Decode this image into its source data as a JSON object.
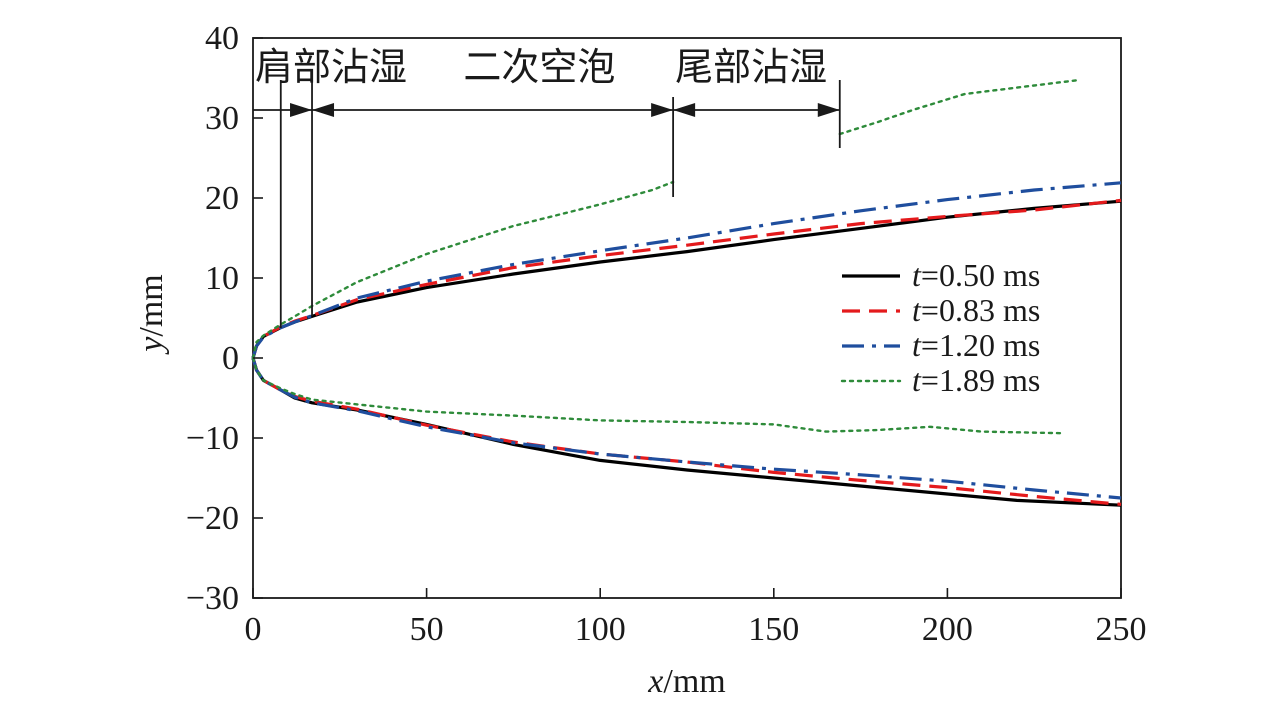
{
  "chart_data": {
    "type": "line",
    "xlabel_var": "x",
    "xlabel_unit": "/mm",
    "ylabel_var": "y",
    "ylabel_unit": "/mm",
    "xlim": [
      0,
      250
    ],
    "ylim": [
      -30,
      40
    ],
    "xticks": [
      0,
      50,
      100,
      150,
      200,
      250
    ],
    "yticks": [
      -30,
      -20,
      -10,
      0,
      10,
      20,
      30,
      40
    ],
    "tick_labels_x": [
      "0",
      "50",
      "100",
      "150",
      "200",
      "250"
    ],
    "tick_labels_y": [
      "−30",
      "−20",
      "−10",
      "0",
      "10",
      "20",
      "30",
      "40"
    ],
    "grid": false,
    "legend_position": "right",
    "regions": [
      {
        "label": "肩部沾湿",
        "x_start": 0,
        "x_end": 17,
        "label_x": 0
      },
      {
        "label": "二次空泡",
        "x_start": 17,
        "x_end": 121,
        "label_x": 60
      },
      {
        "label": "尾部沾湿",
        "x_start": 121,
        "x_end": 169,
        "label_x": 121
      }
    ],
    "series": [
      {
        "name": "t=0.50 ms",
        "name_var": "t",
        "name_rest": "=0.50 ms",
        "color": "#000000",
        "dash": "solid",
        "upper": [
          [
            0,
            0
          ],
          [
            1,
            1.5
          ],
          [
            3,
            2.7
          ],
          [
            8,
            3.8
          ],
          [
            12,
            4.5
          ],
          [
            17,
            5.2
          ],
          [
            30,
            7
          ],
          [
            50,
            8.8
          ],
          [
            75,
            10.5
          ],
          [
            100,
            12
          ],
          [
            125,
            13.3
          ],
          [
            150,
            14.8
          ],
          [
            175,
            16.2
          ],
          [
            200,
            17.6
          ],
          [
            225,
            18.7
          ],
          [
            250,
            19.6
          ]
        ],
        "lower": [
          [
            0,
            0
          ],
          [
            1,
            -1.5
          ],
          [
            3,
            -2.8
          ],
          [
            8,
            -4
          ],
          [
            12,
            -5
          ],
          [
            17,
            -5.6
          ],
          [
            30,
            -6.5
          ],
          [
            50,
            -8.3
          ],
          [
            75,
            -10.8
          ],
          [
            100,
            -12.8
          ],
          [
            125,
            -14
          ],
          [
            150,
            -15
          ],
          [
            175,
            -16
          ],
          [
            200,
            -17
          ],
          [
            220,
            -17.8
          ],
          [
            250,
            -18.4
          ]
        ]
      },
      {
        "name": "t=0.83 ms",
        "name_var": "t",
        "name_rest": "=0.83 ms",
        "color": "#e41a1c",
        "dash": "dashed",
        "upper": [
          [
            0,
            0
          ],
          [
            1,
            1.5
          ],
          [
            3,
            2.7
          ],
          [
            8,
            3.9
          ],
          [
            12,
            4.6
          ],
          [
            17,
            5.3
          ],
          [
            30,
            7.3
          ],
          [
            50,
            9.2
          ],
          [
            75,
            11.3
          ],
          [
            100,
            12.8
          ],
          [
            125,
            14.1
          ],
          [
            150,
            15.5
          ],
          [
            175,
            16.8
          ],
          [
            200,
            17.7
          ],
          [
            225,
            18.5
          ],
          [
            250,
            19.7
          ]
        ],
        "lower": [
          [
            0,
            0
          ],
          [
            1,
            -1.5
          ],
          [
            3,
            -2.8
          ],
          [
            8,
            -4
          ],
          [
            12,
            -4.8
          ],
          [
            17,
            -5.4
          ],
          [
            30,
            -6.4
          ],
          [
            50,
            -8.4
          ],
          [
            75,
            -10.5
          ],
          [
            100,
            -12
          ],
          [
            125,
            -13
          ],
          [
            150,
            -14.3
          ],
          [
            175,
            -15.3
          ],
          [
            200,
            -16.2
          ],
          [
            225,
            -17.3
          ],
          [
            250,
            -18.3
          ]
        ]
      },
      {
        "name": "t=1.20 ms",
        "name_var": "t",
        "name_rest": "=1.20 ms",
        "color": "#1f4e9e",
        "dash": "dashdot",
        "upper": [
          [
            0,
            0
          ],
          [
            1,
            1.5
          ],
          [
            3,
            2.6
          ],
          [
            8,
            3.8
          ],
          [
            12,
            4.5
          ],
          [
            17,
            5.3
          ],
          [
            30,
            7.5
          ],
          [
            50,
            9.6
          ],
          [
            75,
            11.7
          ],
          [
            100,
            13.4
          ],
          [
            125,
            15
          ],
          [
            150,
            16.8
          ],
          [
            175,
            18.4
          ],
          [
            200,
            19.8
          ],
          [
            225,
            21
          ],
          [
            250,
            21.9
          ]
        ],
        "lower": [
          [
            0,
            0
          ],
          [
            1,
            -1.5
          ],
          [
            3,
            -2.8
          ],
          [
            8,
            -4
          ],
          [
            12,
            -4.9
          ],
          [
            17,
            -5.6
          ],
          [
            30,
            -6.6
          ],
          [
            50,
            -8.6
          ],
          [
            75,
            -10.6
          ],
          [
            100,
            -12
          ],
          [
            125,
            -13
          ],
          [
            150,
            -13.9
          ],
          [
            175,
            -14.6
          ],
          [
            200,
            -15.4
          ],
          [
            225,
            -16.5
          ],
          [
            250,
            -17.5
          ]
        ]
      },
      {
        "name": "t=1.89 ms",
        "name_var": "t",
        "name_rest": "=1.89 ms",
        "color": "#2e8b3a",
        "dash": "dotted",
        "upper_segments": [
          [
            [
              0,
              0
            ],
            [
              1,
              2
            ],
            [
              3,
              2.8
            ],
            [
              8,
              4.2
            ],
            [
              12,
              5.2
            ],
            [
              17,
              6.5
            ],
            [
              30,
              9.5
            ],
            [
              50,
              13
            ],
            [
              75,
              16.5
            ],
            [
              100,
              19.2
            ],
            [
              115,
              21
            ],
            [
              121,
              22
            ]
          ],
          [
            [
              169,
              28
            ],
            [
              180,
              29.5
            ],
            [
              190,
              31
            ],
            [
              205,
              33
            ],
            [
              220,
              33.8
            ],
            [
              237,
              34.7
            ]
          ]
        ],
        "lower": [
          [
            0,
            0
          ],
          [
            1,
            -1.5
          ],
          [
            3,
            -2.8
          ],
          [
            8,
            -3.8
          ],
          [
            12,
            -4.5
          ],
          [
            17,
            -5.2
          ],
          [
            30,
            -5.8
          ],
          [
            50,
            -6.7
          ],
          [
            75,
            -7.2
          ],
          [
            100,
            -7.8
          ],
          [
            125,
            -8
          ],
          [
            150,
            -8.3
          ],
          [
            165,
            -9.2
          ],
          [
            180,
            -9
          ],
          [
            195,
            -8.6
          ],
          [
            210,
            -9.2
          ],
          [
            233,
            -9.4
          ]
        ]
      }
    ]
  }
}
